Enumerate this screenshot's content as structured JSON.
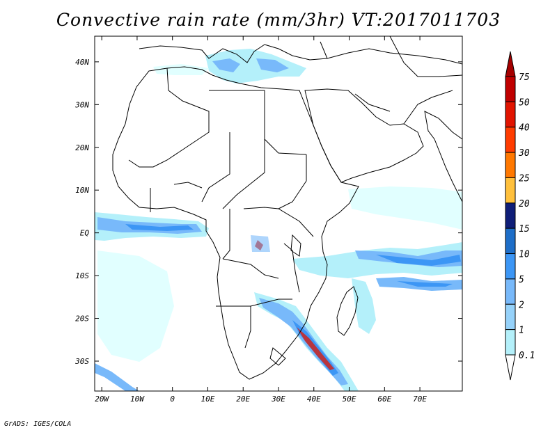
{
  "title": "Convective rain rate (mm/3hr) VT:2017011703",
  "credit": "GrADS: IGES/COLA",
  "map": {
    "lon_range": [
      -22,
      82
    ],
    "lat_range": [
      -37,
      46
    ],
    "lon_ticks": [
      {
        "value": -20,
        "label": "20W"
      },
      {
        "value": -10,
        "label": "10W"
      },
      {
        "value": 0,
        "label": "0"
      },
      {
        "value": 10,
        "label": "10E"
      },
      {
        "value": 20,
        "label": "20E"
      },
      {
        "value": 30,
        "label": "30E"
      },
      {
        "value": 40,
        "label": "40E"
      },
      {
        "value": 50,
        "label": "50E"
      },
      {
        "value": 60,
        "label": "60E"
      },
      {
        "value": 70,
        "label": "70E"
      }
    ],
    "lat_ticks": [
      {
        "value": 40,
        "label": "40N"
      },
      {
        "value": 30,
        "label": "30N"
      },
      {
        "value": 20,
        "label": "20N"
      },
      {
        "value": 10,
        "label": "10N"
      },
      {
        "value": 0,
        "label": "EQ"
      },
      {
        "value": -10,
        "label": "10S"
      },
      {
        "value": -20,
        "label": "20S"
      },
      {
        "value": -30,
        "label": "30S"
      }
    ]
  },
  "colorbar": {
    "levels": [
      {
        "label": "0.1",
        "color": "#e1ffff"
      },
      {
        "label": "1",
        "color": "#b4f0fa"
      },
      {
        "label": "2",
        "color": "#96d2fa"
      },
      {
        "label": "5",
        "color": "#78b9fa"
      },
      {
        "label": "10",
        "color": "#3c96f5"
      },
      {
        "label": "15",
        "color": "#1e6ec8"
      },
      {
        "label": "20",
        "color": "#0f1e78"
      },
      {
        "label": "25",
        "color": "#ffc03c"
      },
      {
        "label": "30",
        "color": "#ff7800"
      },
      {
        "label": "40",
        "color": "#ff3c00"
      },
      {
        "label": "50",
        "color": "#e11400"
      },
      {
        "label": "75",
        "color": "#c00000"
      }
    ],
    "top_color": "#a50000"
  }
}
